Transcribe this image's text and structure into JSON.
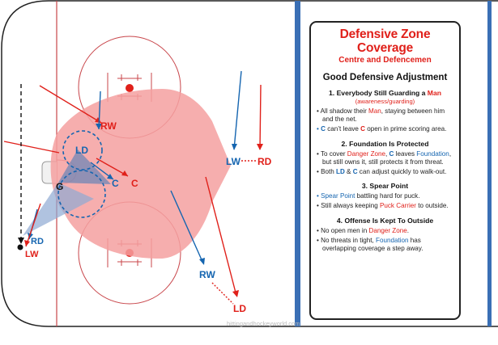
{
  "panel": {
    "title": "Defensive Zone Coverage",
    "subtitle": "Centre and Defencemen",
    "heading": "Good Defensive Adjustment",
    "s1": {
      "num": "1. Everybody Still Guarding a ",
      "man": "Man",
      "note": "(awareness/guarding)",
      "b1a": "All shadow their ",
      "b1man": "Man",
      "b1b": ", staying between him and the net.",
      "b2c1": "C",
      "b2a": " can’t leave ",
      "b2c2": "C",
      "b2b": " open in prime scoring area."
    },
    "s2": {
      "title": "2. Foundation Is Protected",
      "b1a": "To cover ",
      "b1dz": "Danger Zone",
      "b1sep": ", ",
      "b1c": "C",
      "b1b": " leaves ",
      "b1f": "Foundation",
      "b1c2": ", but still owns it, still protects it from threat.",
      "b2a": "Both ",
      "b2ld": "LD",
      "b2amp": " & ",
      "b2c": "C",
      "b2b": " can adjust quickly to walk-out."
    },
    "s3": {
      "title": "3. Spear Point",
      "b1sp": "Spear Point",
      "b1a": " battling hard for puck.",
      "b2a": "Still always keeping ",
      "b2pc": "Puck Carrier",
      "b2b": " to outside."
    },
    "s4": {
      "title": "4. Offense Is Kept To Outside",
      "b1a": "No open men in ",
      "b1dz": "Danger Zone",
      "b1b": ".",
      "b2a": "No threats in tight, ",
      "b2f": "Foundation",
      "b2b": " has overlapping coverage a step away."
    }
  },
  "rink": {
    "labels": {
      "rw_red": "RW",
      "ld_blue": "LD",
      "c_blue": "C",
      "c_red": "C",
      "g": "G",
      "rd_blue": "RD",
      "lw_red": "LW",
      "lw_blue": "LW",
      "rd_red": "RD",
      "rw_blue": "RW",
      "ld_red": "LD"
    }
  },
  "watermark": "hittingandhockeyworld.com",
  "colors": {
    "red": "#e0201a",
    "blue": "#1565b0",
    "danger_zone": "#f4a0a0",
    "rink_line": "#c8454a",
    "blue_line": "#3a6fb5"
  }
}
